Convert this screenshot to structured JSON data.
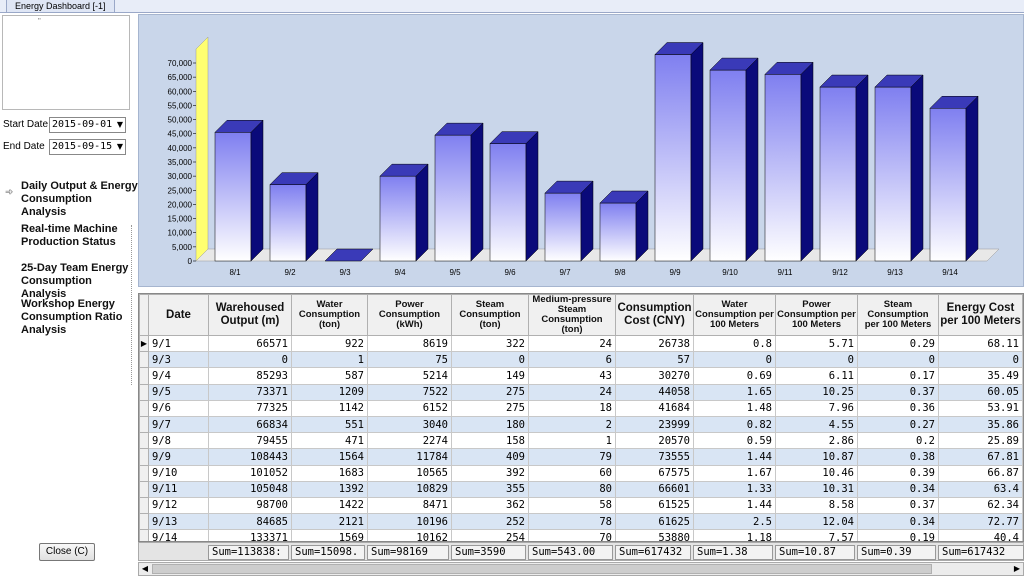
{
  "window": {
    "title": "Energy Dashboard [-1]"
  },
  "filters": {
    "start_label": "Start Date",
    "start_value": "2015-09-01",
    "end_label": "End Date",
    "end_value": "2015-09-15",
    "dropdown_icon": "dropdown-arrow-icon"
  },
  "nav": {
    "active_icon": "double-arrow-icon",
    "items": [
      {
        "label": "Daily Output & Energy Consumption Analysis"
      },
      {
        "label": "Real-time Machine Production Status"
      },
      {
        "label": "25-Day Team Energy Consumption Analysis"
      },
      {
        "label": "Workshop Energy Consumption Ratio Analysis"
      }
    ]
  },
  "close_button": {
    "label": "Close (C)"
  },
  "chart_data": {
    "type": "bar",
    "categories": [
      "8/1",
      "9/2",
      "9/3",
      "9/4",
      "9/5",
      "9/6",
      "9/7",
      "9/8",
      "9/9",
      "9/10",
      "9/11",
      "9/12",
      "9/13",
      "9/14"
    ],
    "values": [
      45500,
      27000,
      0,
      30000,
      44500,
      41500,
      24000,
      20500,
      73000,
      67500,
      66000,
      61500,
      61500,
      54000
    ],
    "yticks": [
      "0",
      "5,000",
      "10,000",
      "15,000",
      "20,000",
      "25,000",
      "30,000",
      "35,000",
      "40,000",
      "45,000",
      "50,000",
      "55,000",
      "60,000",
      "65,000",
      "70,000"
    ],
    "ylim": [
      0,
      70000
    ],
    "colors": {
      "bar_face": "#7f7ff0",
      "bar_top": "#3a3ab8",
      "bar_side": "#0a0a7a",
      "background": "#c9d6ea",
      "wall": "#ffff70"
    }
  },
  "table": {
    "columns": [
      "Date",
      "Warehoused Output (m)",
      "Water Consumption (ton)",
      "Power Consumption (kWh)",
      "Steam Consumption (ton)",
      "Medium-pressure Steam Consumption (ton)",
      "Consumption Cost (CNY)",
      "Water Consumption per 100 Meters",
      "Power Consumption per 100 Meters",
      "Steam Consumption per 100 Meters",
      "Energy Cost per 100 Meters"
    ],
    "selected_row_icon": "row-pointer-icon",
    "rows": [
      [
        "9/1",
        "66571",
        "922",
        "8619",
        "322",
        "24",
        "26738",
        "0.8",
        "5.71",
        "0.29",
        "68.11"
      ],
      [
        "9/3",
        "0",
        "1",
        "75",
        "0",
        "6",
        "57",
        "0",
        "0",
        "0",
        "0"
      ],
      [
        "9/4",
        "85293",
        "587",
        "5214",
        "149",
        "43",
        "30270",
        "0.69",
        "6.11",
        "0.17",
        "35.49"
      ],
      [
        "9/5",
        "73371",
        "1209",
        "7522",
        "275",
        "24",
        "44058",
        "1.65",
        "10.25",
        "0.37",
        "60.05"
      ],
      [
        "9/6",
        "77325",
        "1142",
        "6152",
        "275",
        "18",
        "41684",
        "1.48",
        "7.96",
        "0.36",
        "53.91"
      ],
      [
        "9/7",
        "66834",
        "551",
        "3040",
        "180",
        "2",
        "23999",
        "0.82",
        "4.55",
        "0.27",
        "35.86"
      ],
      [
        "9/8",
        "79455",
        "471",
        "2274",
        "158",
        "1",
        "20570",
        "0.59",
        "2.86",
        "0.2",
        "25.89"
      ],
      [
        "9/9",
        "108443",
        "1564",
        "11784",
        "409",
        "79",
        "73555",
        "1.44",
        "10.87",
        "0.38",
        "67.81"
      ],
      [
        "9/10",
        "101052",
        "1683",
        "10565",
        "392",
        "60",
        "67575",
        "1.67",
        "10.46",
        "0.39",
        "66.87"
      ],
      [
        "9/11",
        "105048",
        "1392",
        "10829",
        "355",
        "80",
        "66601",
        "1.33",
        "10.31",
        "0.34",
        "63.4"
      ],
      [
        "9/12",
        "98700",
        "1422",
        "8471",
        "362",
        "58",
        "61525",
        "1.44",
        "8.58",
        "0.37",
        "62.34"
      ],
      [
        "9/13",
        "84685",
        "2121",
        "10196",
        "252",
        "78",
        "61625",
        "2.5",
        "12.04",
        "0.34",
        "72.77"
      ],
      [
        "9/14",
        "133371",
        "1569",
        "10162",
        "254",
        "70",
        "53880",
        "1.18",
        "7.57",
        "0.19",
        "40.4"
      ]
    ],
    "sums": [
      "Sum=113838:",
      "Sum=15098.",
      "Sum=98169",
      "Sum=3590",
      "Sum=543.00",
      "Sum=617432",
      "Sum=1.38",
      "Sum=10.87",
      "Sum=0.39",
      "Sum=617432"
    ]
  },
  "scrollbar": {
    "left_icon": "scroll-left-icon",
    "right_icon": "scroll-right-icon"
  }
}
